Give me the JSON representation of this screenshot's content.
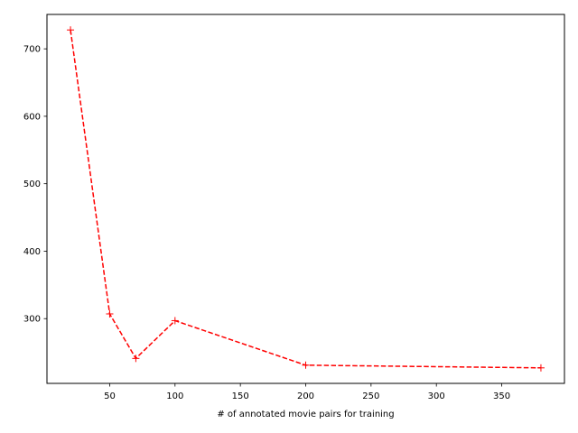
{
  "chart_data": {
    "type": "line",
    "title": "",
    "xlabel": "# of annotated movie pairs for training",
    "ylabel": "",
    "xlim": [
      2,
      398
    ],
    "ylim": [
      204,
      751
    ],
    "xticks": [
      50,
      100,
      150,
      200,
      250,
      300,
      350
    ],
    "yticks": [
      300,
      400,
      500,
      600,
      700
    ],
    "grid": false,
    "legend": "none",
    "series": [
      {
        "x": [
          20,
          50,
          70,
          100,
          200,
          380
        ],
        "y": [
          728,
          307,
          241,
          297,
          231,
          227
        ],
        "color": "#ff0000",
        "linestyle": "dashed",
        "marker": "plus"
      }
    ]
  }
}
